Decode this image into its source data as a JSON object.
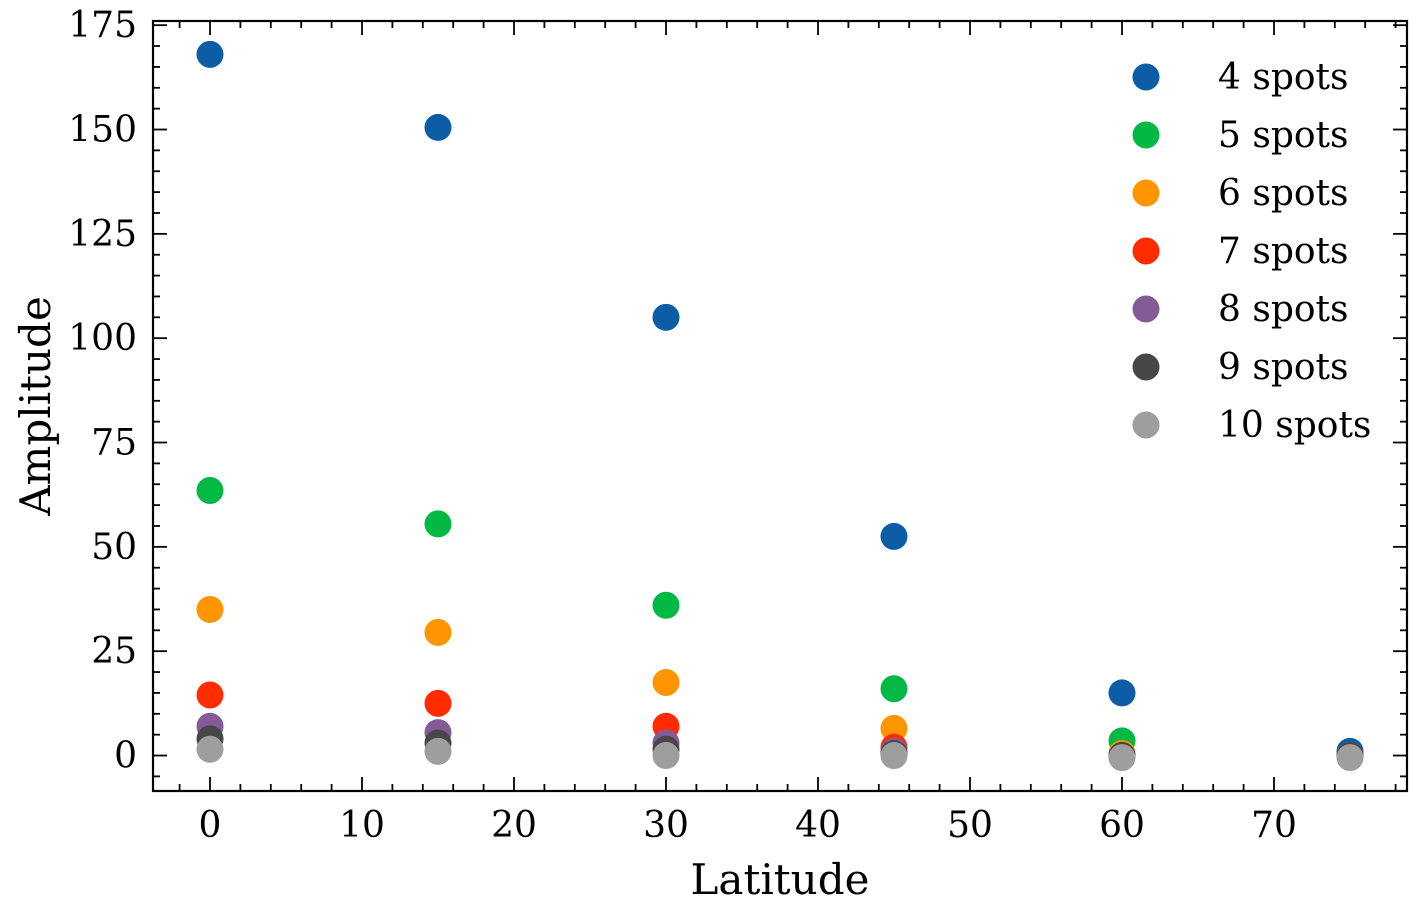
{
  "chart_data": {
    "type": "scatter",
    "xlabel": "Latitude",
    "ylabel": "Amplitude",
    "xlim": [
      -3.75,
      78.75
    ],
    "ylim": [
      -8.5,
      176
    ],
    "xticks": [
      0,
      10,
      20,
      30,
      40,
      50,
      60,
      70
    ],
    "yticks": [
      0,
      25,
      50,
      75,
      100,
      125,
      150,
      175
    ],
    "grid": false,
    "legend_position": "top-right",
    "series": [
      {
        "name": "4 spots",
        "color": "#0C5DA5",
        "x": [
          0,
          15,
          30,
          45,
          60,
          75
        ],
        "y": [
          168,
          150.5,
          105,
          52.5,
          15,
          1
        ]
      },
      {
        "name": "5 spots",
        "color": "#00B945",
        "x": [
          0,
          15,
          30,
          45,
          60,
          75
        ],
        "y": [
          63.5,
          55.5,
          36,
          16,
          3.5,
          0
        ]
      },
      {
        "name": "6 spots",
        "color": "#FF9500",
        "x": [
          0,
          15,
          30,
          45,
          60,
          75
        ],
        "y": [
          35,
          29.5,
          17.5,
          6.5,
          0.5,
          0
        ]
      },
      {
        "name": "7 spots",
        "color": "#FF2C00",
        "x": [
          0,
          15,
          30,
          45,
          60,
          75
        ],
        "y": [
          14.5,
          12.5,
          7,
          2,
          0,
          0
        ]
      },
      {
        "name": "8 spots",
        "color": "#845B97",
        "x": [
          0,
          15,
          30,
          45,
          60,
          75
        ],
        "y": [
          7,
          5.5,
          3,
          1,
          0,
          0
        ]
      },
      {
        "name": "9 spots",
        "color": "#474747",
        "x": [
          0,
          15,
          30,
          45,
          60,
          75
        ],
        "y": [
          4,
          3,
          1.5,
          0.5,
          0,
          0
        ]
      },
      {
        "name": "10 spots",
        "color": "#9E9E9E",
        "x": [
          0,
          15,
          30,
          45,
          60,
          75
        ],
        "y": [
          1.5,
          1,
          0,
          0,
          -0.5,
          -0.5
        ]
      }
    ]
  }
}
